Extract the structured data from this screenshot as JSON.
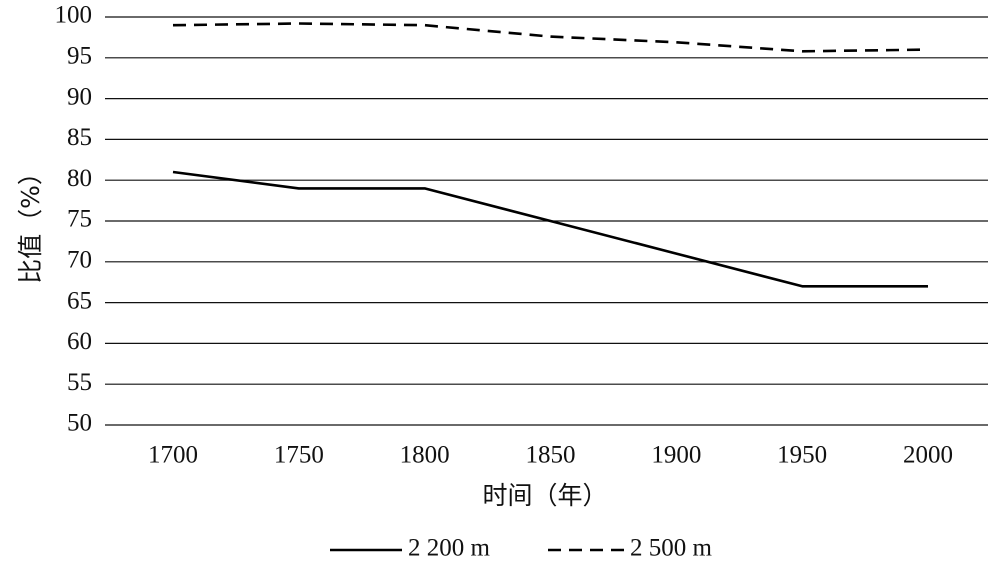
{
  "chart_data": {
    "type": "line",
    "x": [
      1700,
      1750,
      1800,
      1850,
      1900,
      1950,
      2000
    ],
    "xticks": [
      "1700",
      "1750",
      "1800",
      "1850",
      "1900",
      "1950",
      "2000"
    ],
    "yticks": [
      "50",
      "55",
      "60",
      "65",
      "70",
      "75",
      "80",
      "85",
      "90",
      "95",
      "100"
    ],
    "ylim": [
      50,
      100
    ],
    "xlabel": "时间（年）",
    "ylabel": "比值（%）",
    "grid": "horizontal",
    "legend_position": "bottom",
    "series": [
      {
        "name": "2 200 m",
        "style": "solid",
        "color": "#000000",
        "values": [
          81,
          79,
          79,
          75,
          71,
          67,
          67
        ]
      },
      {
        "name": "2 500 m",
        "style": "dashed",
        "color": "#000000",
        "values": [
          99,
          99.2,
          99,
          97.6,
          96.9,
          95.8,
          96
        ]
      }
    ]
  }
}
